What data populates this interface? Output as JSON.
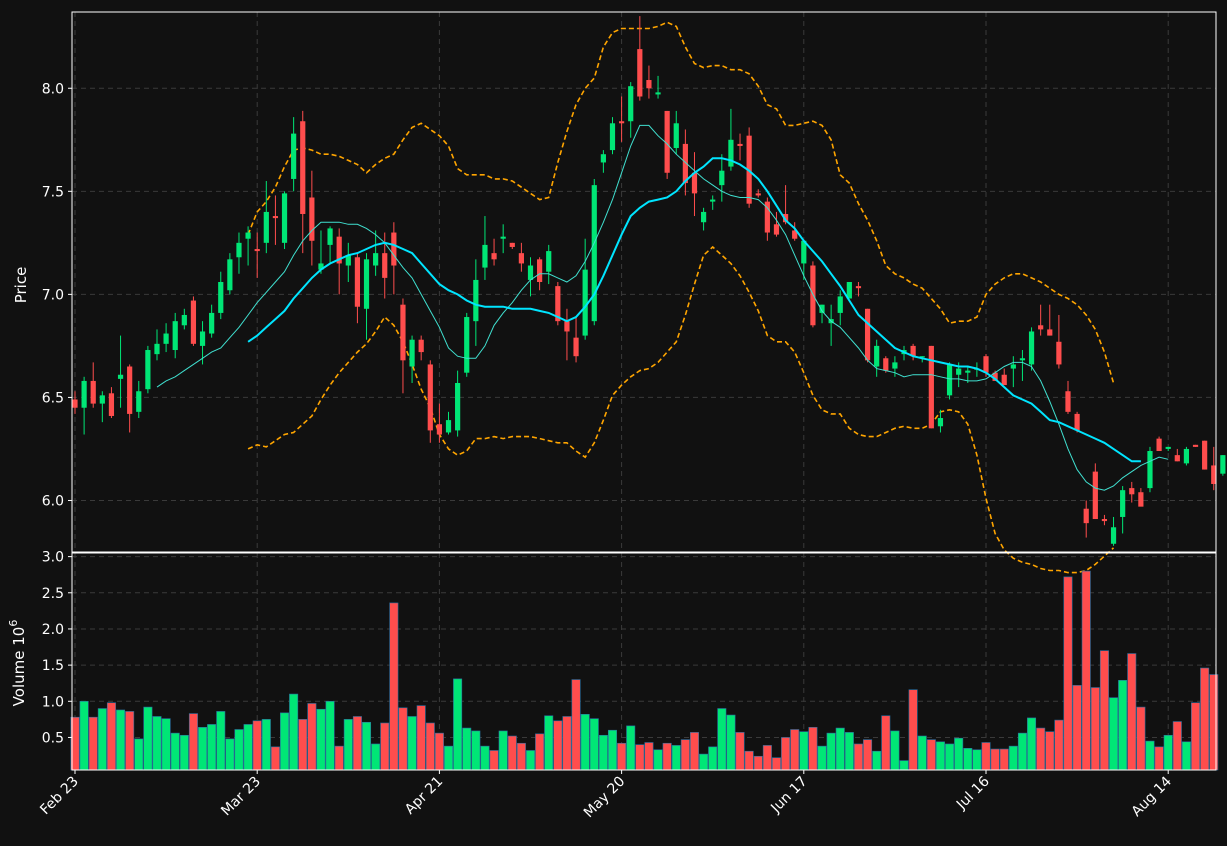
{
  "colors": {
    "background": "#111111",
    "frame": "#ffffff",
    "grid": "#3a3a3a",
    "up": "#00e676",
    "down": "#ff4d4d",
    "ma_fast": "#40e0d0",
    "ma_slow": "#00e5ff",
    "bands": "#ffa500",
    "text": "#ffffff"
  },
  "chart_data": {
    "type": "candlestick",
    "price_panel": {
      "ylabel": "Price",
      "ylim": [
        5.75,
        8.37
      ],
      "yticks": [
        "6.0",
        "6.5",
        "7.0",
        "7.5",
        "8.0"
      ],
      "ytick_values": [
        6.0,
        6.5,
        7.0,
        7.5,
        8.0
      ]
    },
    "volume_panel": {
      "ylabel": "Volume",
      "ylabel_exponent": "10",
      "ylabel_exponent_power": "6",
      "ylim": [
        0.05,
        3.05
      ],
      "yticks": [
        "0.5",
        "1.0",
        "1.5",
        "2.0",
        "2.5",
        "3.0"
      ],
      "ytick_values": [
        0.5,
        1.0,
        1.5,
        2.0,
        2.5,
        3.0
      ]
    },
    "xticks": [
      {
        "label": "Feb 23",
        "index": 0
      },
      {
        "label": "Mar 23",
        "index": 20
      },
      {
        "label": "Apr 21",
        "index": 40
      },
      {
        "label": "May 20",
        "index": 60
      },
      {
        "label": "Jun 17",
        "index": 80
      },
      {
        "label": "Jul 16",
        "index": 100
      },
      {
        "label": "Aug 14",
        "index": 120
      }
    ],
    "grid": true,
    "ohlc": [
      [
        6.49,
        6.53,
        6.42,
        6.45
      ],
      [
        6.45,
        6.6,
        6.32,
        6.58
      ],
      [
        6.58,
        6.67,
        6.45,
        6.47
      ],
      [
        6.47,
        6.53,
        6.38,
        6.51
      ],
      [
        6.52,
        6.55,
        6.4,
        6.41
      ],
      [
        6.59,
        6.8,
        6.45,
        6.61
      ],
      [
        6.65,
        6.66,
        6.33,
        6.42
      ],
      [
        6.43,
        6.58,
        6.4,
        6.53
      ],
      [
        6.54,
        6.75,
        6.52,
        6.73
      ],
      [
        6.71,
        6.83,
        6.68,
        6.76
      ],
      [
        6.76,
        6.86,
        6.72,
        6.81
      ],
      [
        6.73,
        6.91,
        6.69,
        6.87
      ],
      [
        6.85,
        6.93,
        6.83,
        6.9
      ],
      [
        6.97,
        6.99,
        6.75,
        6.76
      ],
      [
        6.75,
        6.87,
        6.66,
        6.82
      ],
      [
        6.81,
        6.95,
        6.79,
        6.91
      ],
      [
        6.91,
        7.11,
        6.88,
        7.06
      ],
      [
        7.02,
        7.2,
        7.0,
        7.17
      ],
      [
        7.18,
        7.3,
        7.1,
        7.25
      ],
      [
        7.27,
        7.33,
        7.14,
        7.3
      ],
      [
        7.22,
        7.3,
        7.08,
        7.21
      ],
      [
        7.25,
        7.55,
        7.2,
        7.4
      ],
      [
        7.38,
        7.48,
        7.24,
        7.37
      ],
      [
        7.25,
        7.5,
        7.22,
        7.49
      ],
      [
        7.56,
        7.86,
        7.5,
        7.78
      ],
      [
        7.84,
        7.89,
        7.2,
        7.39
      ],
      [
        7.47,
        7.6,
        7.14,
        7.26
      ],
      [
        7.12,
        7.31,
        7.1,
        7.15
      ],
      [
        7.24,
        7.33,
        7.15,
        7.32
      ],
      [
        7.28,
        7.32,
        7.0,
        7.15
      ],
      [
        7.14,
        7.25,
        7.06,
        7.19
      ],
      [
        7.18,
        7.2,
        6.86,
        6.94
      ],
      [
        6.93,
        7.2,
        6.78,
        7.17
      ],
      [
        7.14,
        7.31,
        7.09,
        7.2
      ],
      [
        7.2,
        7.3,
        6.98,
        7.08
      ],
      [
        7.3,
        7.35,
        7.0,
        7.14
      ],
      [
        6.95,
        6.98,
        6.52,
        6.68
      ],
      [
        6.65,
        6.8,
        6.57,
        6.78
      ],
      [
        6.78,
        6.8,
        6.68,
        6.72
      ],
      [
        6.66,
        6.68,
        6.28,
        6.34
      ],
      [
        6.37,
        6.47,
        6.28,
        6.32
      ],
      [
        6.33,
        6.43,
        6.32,
        6.39
      ],
      [
        6.34,
        6.63,
        6.31,
        6.57
      ],
      [
        6.62,
        6.91,
        6.6,
        6.89
      ],
      [
        6.87,
        7.17,
        6.75,
        7.07
      ],
      [
        7.13,
        7.38,
        7.07,
        7.24
      ],
      [
        7.2,
        7.27,
        7.14,
        7.17
      ],
      [
        7.27,
        7.34,
        7.2,
        7.28
      ],
      [
        7.25,
        7.25,
        7.22,
        7.23
      ],
      [
        7.2,
        7.25,
        7.11,
        7.15
      ],
      [
        7.07,
        7.18,
        6.99,
        7.14
      ],
      [
        7.17,
        7.18,
        7.02,
        7.06
      ],
      [
        7.11,
        7.24,
        7.05,
        7.21
      ],
      [
        7.04,
        7.06,
        6.85,
        6.87
      ],
      [
        6.87,
        6.93,
        6.68,
        6.82
      ],
      [
        6.79,
        6.89,
        6.67,
        6.7
      ],
      [
        6.8,
        7.27,
        6.78,
        7.12
      ],
      [
        6.87,
        7.56,
        6.85,
        7.53
      ],
      [
        7.64,
        7.7,
        7.59,
        7.68
      ],
      [
        7.7,
        7.86,
        7.68,
        7.83
      ],
      [
        7.84,
        7.96,
        7.74,
        7.83
      ],
      [
        7.84,
        8.03,
        7.76,
        8.01
      ],
      [
        8.19,
        8.35,
        7.94,
        7.96
      ],
      [
        8.04,
        8.11,
        7.95,
        8.0
      ],
      [
        7.97,
        8.06,
        7.95,
        7.98
      ],
      [
        7.89,
        7.89,
        7.56,
        7.59
      ],
      [
        7.71,
        7.89,
        7.68,
        7.83
      ],
      [
        7.73,
        7.8,
        7.48,
        7.54
      ],
      [
        7.59,
        7.69,
        7.38,
        7.49
      ],
      [
        7.35,
        7.42,
        7.31,
        7.4
      ],
      [
        7.45,
        7.48,
        7.41,
        7.46
      ],
      [
        7.53,
        7.68,
        7.45,
        7.6
      ],
      [
        7.62,
        7.9,
        7.6,
        7.75
      ],
      [
        7.73,
        7.78,
        7.65,
        7.72
      ],
      [
        7.77,
        7.81,
        7.42,
        7.44
      ],
      [
        7.49,
        7.51,
        7.47,
        7.48
      ],
      [
        7.45,
        7.47,
        7.26,
        7.3
      ],
      [
        7.34,
        7.4,
        7.28,
        7.29
      ],
      [
        7.39,
        7.53,
        7.34,
        7.35
      ],
      [
        7.31,
        7.35,
        7.26,
        7.27
      ],
      [
        7.15,
        7.26,
        7.07,
        7.26
      ],
      [
        7.14,
        7.16,
        6.84,
        6.85
      ],
      [
        6.91,
        6.95,
        6.86,
        6.95
      ],
      [
        6.86,
        6.95,
        6.75,
        6.88
      ],
      [
        6.91,
        7.02,
        6.85,
        6.99
      ],
      [
        6.98,
        7.06,
        6.98,
        7.06
      ],
      [
        7.04,
        7.06,
        6.99,
        7.03
      ],
      [
        6.93,
        6.93,
        6.67,
        6.68
      ],
      [
        6.65,
        6.78,
        6.6,
        6.75
      ],
      [
        6.69,
        6.7,
        6.62,
        6.63
      ],
      [
        6.64,
        6.7,
        6.6,
        6.67
      ],
      [
        6.71,
        6.75,
        6.68,
        6.73
      ],
      [
        6.75,
        6.76,
        6.68,
        6.7
      ],
      [
        6.7,
        6.7,
        6.67,
        6.7
      ],
      [
        6.75,
        6.75,
        6.35,
        6.35
      ],
      [
        6.36,
        6.44,
        6.33,
        6.4
      ],
      [
        6.51,
        6.67,
        6.49,
        6.66
      ],
      [
        6.61,
        6.67,
        6.55,
        6.64
      ],
      [
        6.62,
        6.65,
        6.57,
        6.63
      ],
      [
        6.64,
        6.67,
        6.6,
        6.64
      ],
      [
        6.7,
        6.71,
        6.6,
        6.62
      ],
      [
        6.62,
        6.63,
        6.58,
        6.58
      ],
      [
        6.61,
        6.64,
        6.56,
        6.56
      ],
      [
        6.64,
        6.7,
        6.55,
        6.66
      ],
      [
        6.68,
        6.73,
        6.58,
        6.69
      ],
      [
        6.66,
        6.84,
        6.63,
        6.82
      ],
      [
        6.85,
        6.95,
        6.8,
        6.83
      ],
      [
        6.83,
        6.95,
        6.8,
        6.8
      ],
      [
        6.77,
        6.9,
        6.64,
        6.66
      ],
      [
        6.53,
        6.58,
        6.42,
        6.43
      ],
      [
        6.42,
        6.43,
        6.33,
        6.34
      ],
      [
        5.96,
        6.0,
        5.82,
        5.89
      ],
      [
        6.14,
        6.18,
        5.91,
        5.91
      ],
      [
        5.91,
        5.93,
        5.88,
        5.9
      ],
      [
        5.79,
        5.92,
        5.78,
        5.87
      ],
      [
        5.92,
        6.07,
        5.84,
        6.05
      ],
      [
        6.06,
        6.09,
        5.99,
        6.03
      ],
      [
        6.04,
        6.06,
        5.98,
        5.97
      ],
      [
        6.06,
        6.26,
        6.04,
        6.24
      ],
      [
        6.3,
        6.31,
        6.24,
        6.24
      ],
      [
        6.25,
        6.26,
        6.24,
        6.26
      ],
      [
        6.22,
        6.25,
        6.19,
        6.19
      ],
      [
        6.18,
        6.26,
        6.17,
        6.25
      ],
      [
        6.27,
        6.27,
        6.26,
        6.26
      ],
      [
        6.29,
        6.29,
        6.15,
        6.15
      ],
      [
        6.17,
        6.26,
        6.05,
        6.08
      ],
      [
        6.13,
        6.22,
        6.12,
        6.22
      ],
      [
        6.16,
        6.29,
        6.13,
        6.27
      ]
    ],
    "volume": [
      0.78,
      1.0,
      0.78,
      0.9,
      0.98,
      0.88,
      0.86,
      0.48,
      0.92,
      0.79,
      0.76,
      0.56,
      0.53,
      0.83,
      0.64,
      0.68,
      0.86,
      0.48,
      0.61,
      0.68,
      0.73,
      0.75,
      0.37,
      0.84,
      1.1,
      0.75,
      0.97,
      0.89,
      1.0,
      0.38,
      0.75,
      0.79,
      0.71,
      0.41,
      0.7,
      2.36,
      0.91,
      0.79,
      0.94,
      0.7,
      0.56,
      0.38,
      1.31,
      0.63,
      0.59,
      0.38,
      0.32,
      0.59,
      0.52,
      0.42,
      0.32,
      0.55,
      0.8,
      0.73,
      0.79,
      1.3,
      0.82,
      0.76,
      0.53,
      0.6,
      0.42,
      0.66,
      0.4,
      0.43,
      0.33,
      0.42,
      0.39,
      0.47,
      0.57,
      0.27,
      0.37,
      0.9,
      0.81,
      0.57,
      0.31,
      0.24,
      0.39,
      0.22,
      0.5,
      0.61,
      0.58,
      0.64,
      0.38,
      0.56,
      0.63,
      0.57,
      0.41,
      0.47,
      0.31,
      0.8,
      0.59,
      0.18,
      1.16,
      0.52,
      0.47,
      0.44,
      0.41,
      0.49,
      0.35,
      0.33,
      0.43,
      0.34,
      0.34,
      0.38,
      0.56,
      0.77,
      0.63,
      0.58,
      0.74,
      2.72,
      1.22,
      2.8,
      1.19,
      1.7,
      1.05,
      1.29,
      1.66,
      0.92,
      0.45,
      0.37,
      0.53,
      0.72,
      0.44,
      0.98,
      1.46,
      1.37
    ],
    "ma_fast": {
      "start": 9,
      "values": [
        6.55,
        6.58,
        6.6,
        6.63,
        6.66,
        6.69,
        6.72,
        6.74,
        6.79,
        6.84,
        6.9,
        6.96,
        7.01,
        7.06,
        7.11,
        7.19,
        7.26,
        7.31,
        7.35,
        7.35,
        7.35,
        7.34,
        7.34,
        7.32,
        7.29,
        7.25,
        7.19,
        7.13,
        7.08,
        7.0,
        6.92,
        6.84,
        6.74,
        6.7,
        6.69,
        6.69,
        6.75,
        6.85,
        6.91,
        6.96,
        7.02,
        7.07,
        7.1,
        7.1,
        7.08,
        7.06,
        7.09,
        7.16,
        7.25,
        7.35,
        7.46,
        7.59,
        7.72,
        7.82,
        7.82,
        7.77,
        7.73,
        7.68,
        7.64,
        7.6,
        7.56,
        7.53,
        7.5,
        7.48,
        7.47,
        7.47,
        7.46,
        7.42,
        7.36,
        7.29,
        7.19,
        7.09,
        7.0,
        6.92,
        6.87,
        6.84,
        6.79,
        6.74,
        6.68,
        6.64,
        6.63,
        6.62,
        6.6,
        6.61,
        6.61,
        6.61,
        6.6,
        6.59,
        6.59,
        6.58,
        6.58,
        6.59,
        6.62,
        6.65,
        6.67,
        6.67,
        6.65,
        6.58,
        6.48,
        6.37,
        6.25,
        6.15,
        6.09,
        6.06,
        6.05,
        6.07,
        6.11,
        6.14,
        6.17,
        6.19,
        6.21,
        6.2
      ]
    },
    "ma_slow": {
      "start": 19,
      "values": [
        6.77,
        6.8,
        6.84,
        6.88,
        6.92,
        6.98,
        7.03,
        7.08,
        7.12,
        7.15,
        7.17,
        7.19,
        7.2,
        7.22,
        7.24,
        7.25,
        7.24,
        7.22,
        7.2,
        7.15,
        7.1,
        7.05,
        7.02,
        7.0,
        6.97,
        6.95,
        6.94,
        6.94,
        6.94,
        6.93,
        6.93,
        6.93,
        6.92,
        6.91,
        6.89,
        6.87,
        6.89,
        6.94,
        7.0,
        7.09,
        7.19,
        7.29,
        7.38,
        7.42,
        7.45,
        7.46,
        7.47,
        7.5,
        7.55,
        7.59,
        7.62,
        7.66,
        7.66,
        7.65,
        7.63,
        7.6,
        7.56,
        7.5,
        7.43,
        7.36,
        7.32,
        7.26,
        7.21,
        7.16,
        7.1,
        7.04,
        6.97,
        6.9,
        6.86,
        6.82,
        6.78,
        6.74,
        6.72,
        6.7,
        6.69,
        6.68,
        6.67,
        6.66,
        6.65,
        6.65,
        6.64,
        6.62,
        6.59,
        6.55,
        6.51,
        6.49,
        6.47,
        6.43,
        6.39,
        6.38,
        6.36,
        6.34,
        6.32,
        6.3,
        6.28,
        6.25,
        6.22,
        6.19,
        6.19
      ]
    },
    "bb_upper": {
      "start": 19,
      "values": [
        7.29,
        7.4,
        7.45,
        7.52,
        7.62,
        7.7,
        7.71,
        7.7,
        7.68,
        7.68,
        7.67,
        7.65,
        7.63,
        7.59,
        7.63,
        7.66,
        7.68,
        7.75,
        7.81,
        7.83,
        7.8,
        7.77,
        7.72,
        7.61,
        7.58,
        7.58,
        7.58,
        7.56,
        7.56,
        7.55,
        7.52,
        7.49,
        7.46,
        7.47,
        7.64,
        7.79,
        7.92,
        8.0,
        8.05,
        8.2,
        8.27,
        8.29,
        8.29,
        8.29,
        8.29,
        8.3,
        8.32,
        8.3,
        8.2,
        8.12,
        8.1,
        8.11,
        8.11,
        8.09,
        8.09,
        8.07,
        8.01,
        7.92,
        7.9,
        7.82,
        7.82,
        7.83,
        7.84,
        7.82,
        7.75,
        7.58,
        7.54,
        7.44,
        7.36,
        7.26,
        7.14,
        7.1,
        7.08,
        7.05,
        7.03,
        6.98,
        6.93,
        6.86,
        6.87,
        6.87,
        6.89,
        7.0,
        7.05,
        7.08,
        7.1,
        7.1,
        7.08,
        7.06,
        7.03,
        7.0,
        6.98,
        6.95,
        6.9,
        6.83,
        6.72,
        6.57
      ]
    },
    "bb_lower": {
      "start": 19,
      "values": [
        6.25,
        6.27,
        6.26,
        6.29,
        6.32,
        6.33,
        6.37,
        6.41,
        6.49,
        6.56,
        6.62,
        6.67,
        6.72,
        6.76,
        6.82,
        6.89,
        6.85,
        6.77,
        6.66,
        6.54,
        6.45,
        6.32,
        6.25,
        6.22,
        6.24,
        6.3,
        6.3,
        6.31,
        6.3,
        6.31,
        6.31,
        6.31,
        6.3,
        6.29,
        6.28,
        6.28,
        6.24,
        6.21,
        6.28,
        6.39,
        6.51,
        6.56,
        6.6,
        6.63,
        6.64,
        6.67,
        6.72,
        6.77,
        6.9,
        7.05,
        7.19,
        7.23,
        7.19,
        7.15,
        7.09,
        7.01,
        6.92,
        6.8,
        6.77,
        6.77,
        6.72,
        6.62,
        6.51,
        6.44,
        6.42,
        6.42,
        6.35,
        6.32,
        6.31,
        6.31,
        6.33,
        6.35,
        6.36,
        6.35,
        6.35,
        6.37,
        6.43,
        6.44,
        6.43,
        6.37,
        6.22,
        6.01,
        5.84,
        5.76,
        5.72,
        5.7,
        5.69,
        5.67,
        5.66,
        5.66,
        5.65,
        5.65,
        5.66,
        5.69,
        5.73,
        5.77
      ]
    }
  }
}
